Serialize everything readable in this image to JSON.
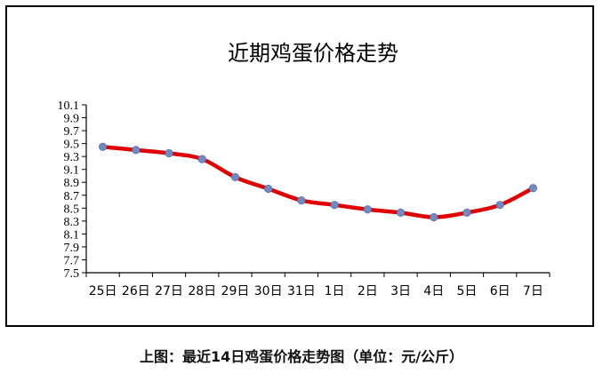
{
  "caption": "上图：最近14日鸡蛋价格走势图（单位：元/公斤）",
  "chart_data": {
    "type": "line",
    "title": "近期鸡蛋价格走势",
    "xlabel": "",
    "ylabel": "",
    "categories": [
      "25日",
      "26日",
      "27日",
      "28日",
      "29日",
      "30日",
      "31日",
      "1日",
      "2日",
      "3日",
      "4日",
      "5日",
      "6日",
      "7日"
    ],
    "series": [
      {
        "values": [
          9.45,
          9.4,
          9.35,
          9.26,
          8.98,
          8.8,
          8.62,
          8.55,
          8.48,
          8.43,
          8.36,
          8.43,
          8.55,
          8.81
        ]
      }
    ],
    "ylim": [
      7.5,
      10.1
    ],
    "yticks": [
      "7.5",
      "7.7",
      "7.9",
      "8.1",
      "8.3",
      "8.5",
      "8.7",
      "8.9",
      "9.1",
      "9.3",
      "9.5",
      "9.7",
      "9.9",
      "10.1"
    ],
    "grid": false,
    "legend": "none",
    "colors": {
      "line": "#e00000",
      "marker": "#6f8bc4",
      "axis": "#000000"
    }
  }
}
